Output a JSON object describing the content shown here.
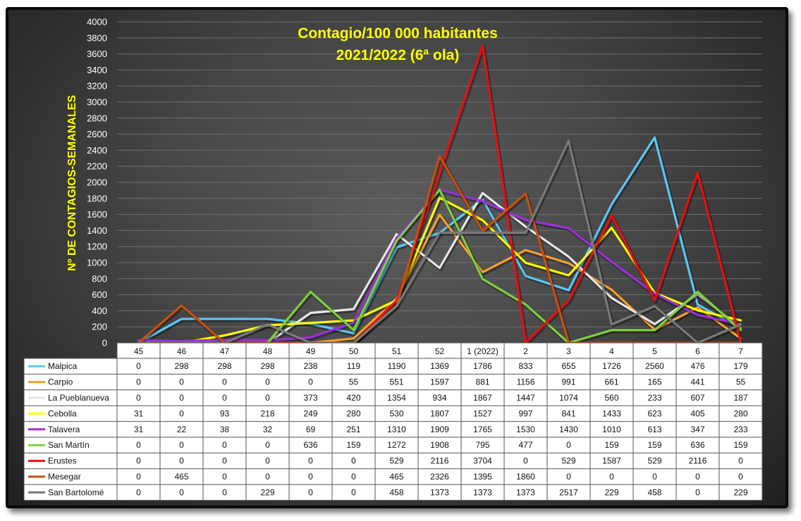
{
  "chart_data": {
    "type": "line",
    "title": "Contagio/100 000 habitantes",
    "subtitle": "2021/2022 (6ª ola)",
    "ylabel": "Nº DE CONTAGIOS-SEMANALES",
    "xlabel": "",
    "ylim": [
      0,
      4000
    ],
    "yticks": [
      "0",
      "200",
      "400",
      "600",
      "800",
      "1000",
      "1200",
      "1400",
      "1600",
      "1800",
      "2000",
      "2200",
      "2400",
      "2600",
      "2800",
      "3000",
      "3200",
      "3400",
      "3600",
      "3800",
      "4000"
    ],
    "grid": true,
    "legend": "data-table",
    "categories": [
      "45",
      "46",
      "47",
      "48",
      "49",
      "50",
      "51",
      "52",
      "1 (2022)",
      "2",
      "3",
      "4",
      "5",
      "6",
      "7"
    ],
    "series": [
      {
        "name": "Malpica",
        "color": "#5bc8f5",
        "values": [
          0,
          298,
          298,
          298,
          238,
          119,
          1190,
          1369,
          1786,
          833,
          655,
          1726,
          2560,
          476,
          179
        ]
      },
      {
        "name": "Carpio",
        "color": "#f5a030",
        "values": [
          0,
          0,
          0,
          0,
          0,
          55,
          551,
          1597,
          881,
          1156,
          991,
          661,
          165,
          441,
          55
        ]
      },
      {
        "name": "La Pueblanueva",
        "color": "#e6e6e6",
        "values": [
          0,
          0,
          0,
          0,
          373,
          420,
          1354,
          934,
          1867,
          1447,
          1074,
          560,
          233,
          607,
          187
        ]
      },
      {
        "name": "Cebolla",
        "color": "#ffff00",
        "values": [
          31,
          0,
          93,
          218,
          249,
          280,
          530,
          1807,
          1527,
          997,
          841,
          1433,
          623,
          405,
          280
        ]
      },
      {
        "name": "Talavera",
        "color": "#9b30d9",
        "values": [
          31,
          22,
          38,
          32,
          69,
          251,
          1310,
          1909,
          1765,
          1530,
          1430,
          1010,
          613,
          347,
          233
        ]
      },
      {
        "name": "San Martín",
        "color": "#7dd23a",
        "values": [
          0,
          0,
          0,
          0,
          636,
          159,
          1272,
          1908,
          795,
          477,
          0,
          159,
          159,
          636,
          159
        ]
      },
      {
        "name": "Erustes",
        "color": "#e81010",
        "values": [
          0,
          0,
          0,
          0,
          0,
          0,
          529,
          2116,
          3704,
          0,
          529,
          1587,
          529,
          2116,
          0
        ]
      },
      {
        "name": "Mesegar",
        "color": "#c8500f",
        "values": [
          0,
          465,
          0,
          0,
          0,
          0,
          465,
          2326,
          1395,
          1860,
          0,
          0,
          0,
          0,
          0
        ]
      },
      {
        "name": "San Bartolomé",
        "color": "#7a7a7a",
        "values": [
          0,
          0,
          0,
          229,
          0,
          0,
          458,
          1373,
          1373,
          1373,
          2517,
          229,
          458,
          0,
          229
        ]
      }
    ]
  }
}
